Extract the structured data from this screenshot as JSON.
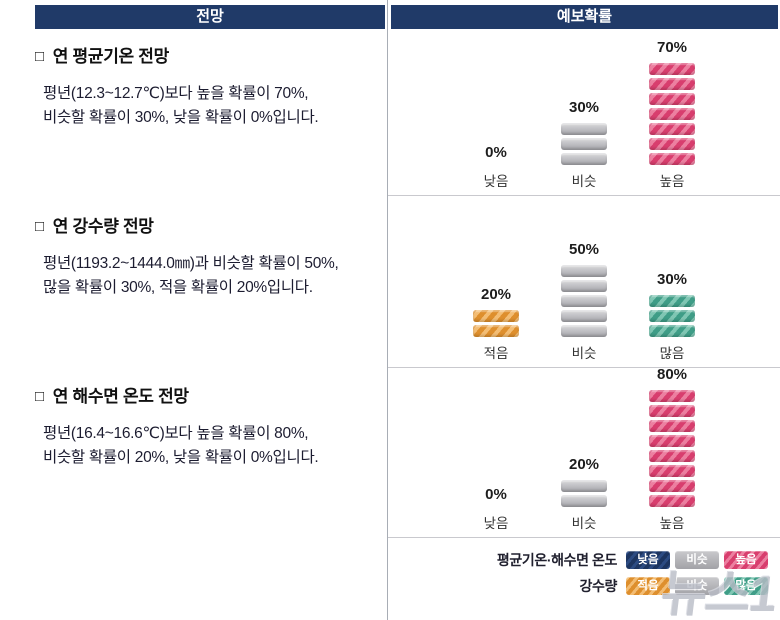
{
  "header": {
    "left": "전망",
    "right": "예보확률"
  },
  "section_bullet": "□",
  "sections": [
    {
      "title": "연 평균기온 전망",
      "body_lines": [
        "평년(12.3~12.7℃)보다 높을 확률이 70%,",
        "비슷할 확률이 30%, 낮을 확률이 0%입니다."
      ]
    },
    {
      "title": "연 강수량 전망",
      "body_lines": [
        "평년(1193.2~1444.0㎜)과 비슷할 확률이 50%,",
        "많을 확률이 30%, 적을 확률이 20%입니다."
      ]
    },
    {
      "title": "연 해수면 온도 전망",
      "body_lines": [
        "평년(16.4~16.6℃)보다 높을 확률이 80%,",
        "비슷할 확률이 20%, 낮을 확률이 0%입니다."
      ]
    }
  ],
  "chart_data": [
    {
      "type": "bar",
      "title": "연 평균기온 전망 예보확률",
      "categories": [
        "낮음",
        "비슷",
        "높음"
      ],
      "values": [
        0,
        30,
        70
      ],
      "value_labels": [
        "0%",
        "30%",
        "70%"
      ],
      "colors": [
        "navy",
        "gray",
        "pink"
      ],
      "ylim": [
        0,
        100
      ]
    },
    {
      "type": "bar",
      "title": "연 강수량 전망 예보확률",
      "categories": [
        "적음",
        "비슷",
        "많음"
      ],
      "values": [
        20,
        50,
        30
      ],
      "value_labels": [
        "20%",
        "50%",
        "30%"
      ],
      "colors": [
        "orange",
        "gray",
        "teal"
      ],
      "ylim": [
        0,
        100
      ]
    },
    {
      "type": "bar",
      "title": "연 해수면 온도 전망 예보확률",
      "categories": [
        "낮음",
        "비슷",
        "높음"
      ],
      "values": [
        0,
        20,
        80
      ],
      "value_labels": [
        "0%",
        "20%",
        "80%"
      ],
      "colors": [
        "navy",
        "gray",
        "pink"
      ],
      "ylim": [
        0,
        100
      ]
    }
  ],
  "legend": {
    "rows": [
      {
        "label": "평균기온·해수면 온도",
        "items": [
          {
            "text": "낮음",
            "color": "navy"
          },
          {
            "text": "비슷",
            "color": "gray"
          },
          {
            "text": "높음",
            "color": "pink"
          }
        ]
      },
      {
        "label": "강수량",
        "items": [
          {
            "text": "적음",
            "color": "orange"
          },
          {
            "text": "비슷",
            "color": "gray"
          },
          {
            "text": "많음",
            "color": "teal"
          }
        ]
      }
    ]
  },
  "colors": {
    "navy": "#203a68",
    "gray": "#b3b3b6",
    "pink": "#d83e6e",
    "orange": "#de8f2d",
    "teal": "#3f9d87"
  },
  "watermark": "뉴스1"
}
